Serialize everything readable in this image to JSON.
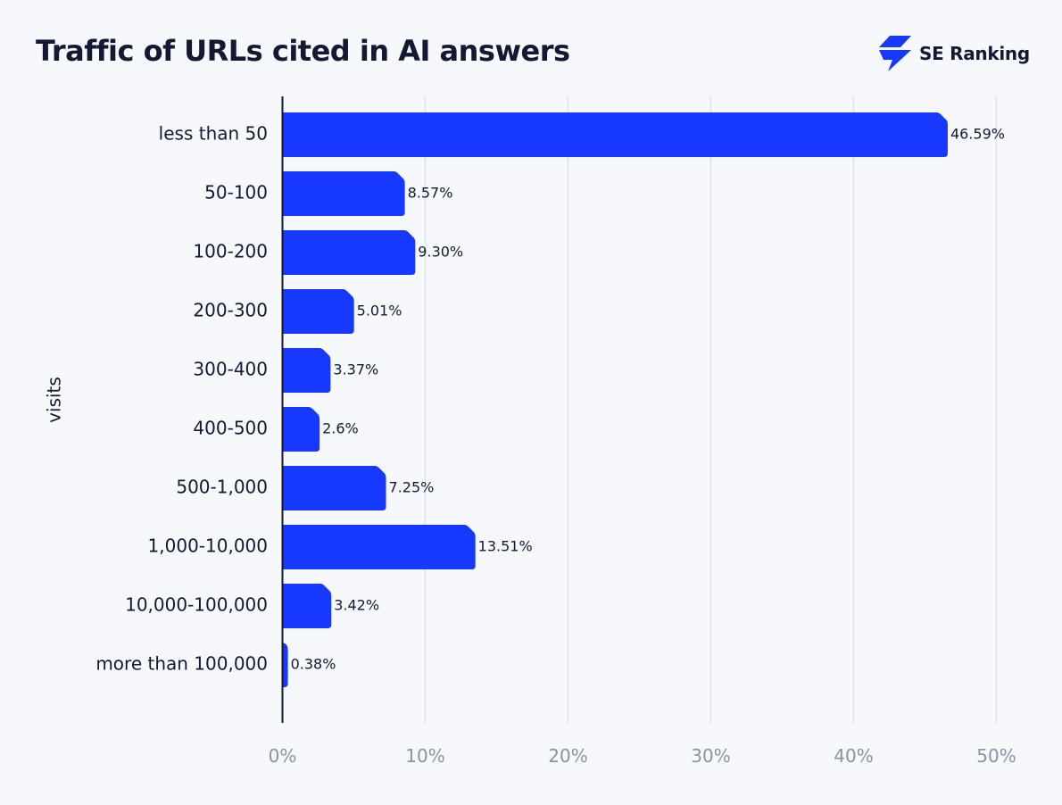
{
  "brand": {
    "name": "SE Ranking",
    "logo_icon": "lightning-bolt-icon",
    "logo_color": "#1739ff"
  },
  "chart_data": {
    "type": "bar",
    "orientation": "horizontal",
    "title": "Traffic of URLs cited in AI answers",
    "ylabel": "visits",
    "xlabel": "",
    "categories": [
      "less than 50",
      "50-100",
      "100-200",
      "200-300",
      "300-400",
      "400-500",
      "500-1,000",
      "1,000-10,000",
      "10,000-100,000",
      "more than 100,000"
    ],
    "values": [
      46.59,
      8.57,
      9.3,
      5.01,
      3.37,
      2.6,
      7.25,
      13.51,
      3.42,
      0.38
    ],
    "value_labels": [
      "46.59%",
      "8.57%",
      "9.30%",
      "5.01%",
      "3.37%",
      "2.6%",
      "7.25%",
      "13.51%",
      "3.42%",
      "0.38%"
    ],
    "xlim": [
      0,
      50
    ],
    "x_ticks": [
      0,
      10,
      20,
      30,
      40,
      50
    ],
    "x_tick_labels": [
      "0%",
      "10%",
      "20%",
      "30%",
      "40%",
      "50%"
    ],
    "grid": "vertical",
    "legend": "none",
    "bar_color": "#1739ff"
  }
}
